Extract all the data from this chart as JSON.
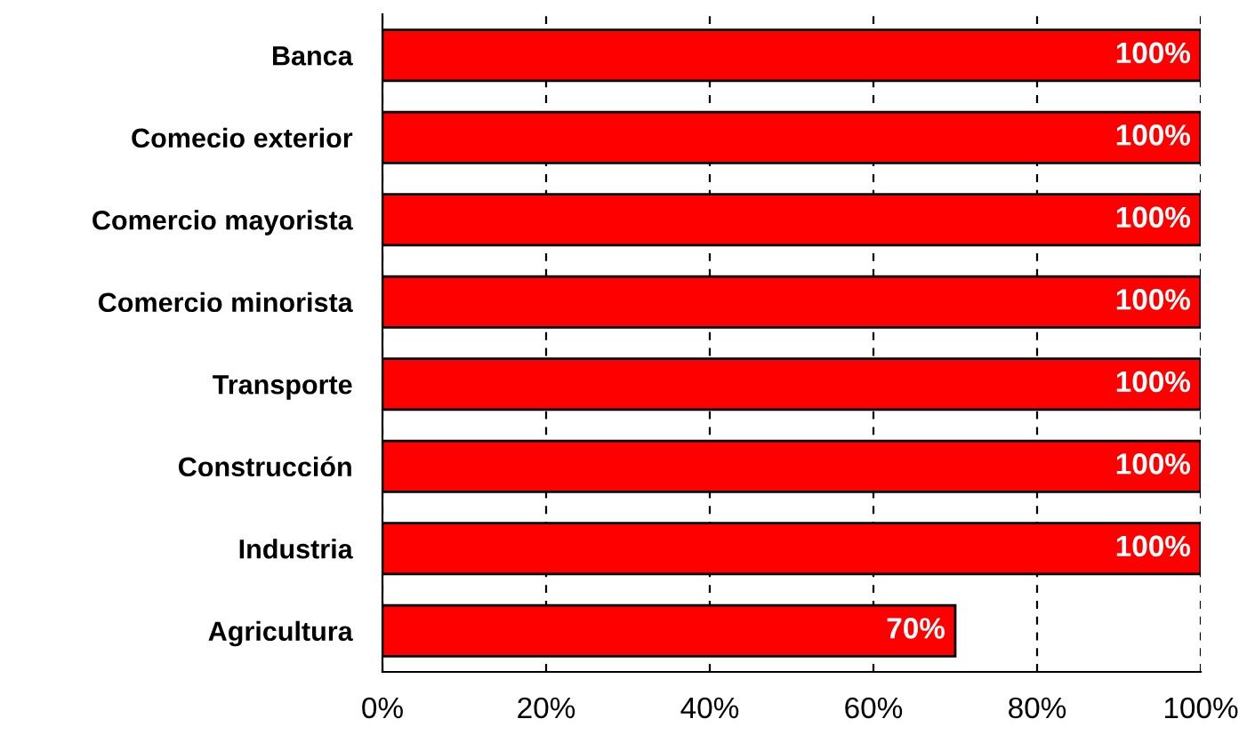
{
  "chart_data": {
    "type": "bar",
    "orientation": "horizontal",
    "categories": [
      "Banca",
      "Comecio exterior",
      "Comercio mayorista",
      "Comercio minorista",
      "Transporte",
      "Construcción",
      "Industria",
      "Agricultura"
    ],
    "values": [
      100,
      100,
      100,
      100,
      100,
      100,
      100,
      70
    ],
    "value_labels": [
      "100%",
      "100%",
      "100%",
      "100%",
      "100%",
      "100%",
      "100%",
      "70%"
    ],
    "color": "#ff0000",
    "xlim": [
      0,
      100
    ],
    "xticks": [
      {
        "value": 0,
        "label": "0%"
      },
      {
        "value": 20,
        "label": "20%"
      },
      {
        "value": 40,
        "label": "40%"
      },
      {
        "value": 60,
        "label": "60%"
      },
      {
        "value": 80,
        "label": "80%"
      },
      {
        "value": 100,
        "label": "100%"
      }
    ],
    "grid": "x",
    "legend": false
  }
}
